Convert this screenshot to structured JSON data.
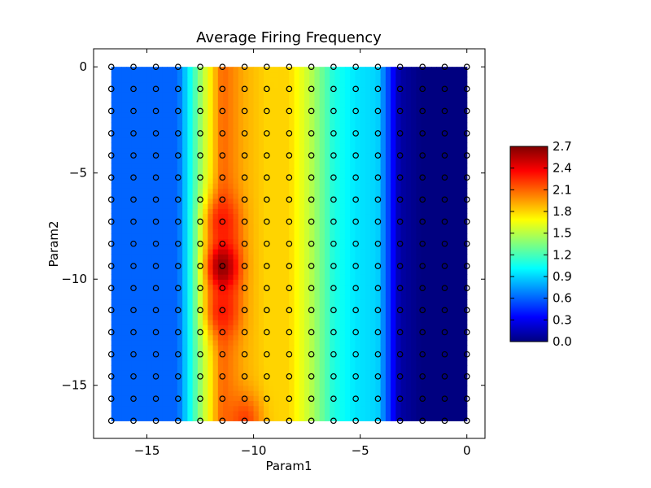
{
  "chart_data": {
    "type": "heatmap",
    "title": "Average Firing Frequency",
    "xlabel": "Param1",
    "ylabel": "Param2",
    "xlim": [
      -17.5,
      0.85
    ],
    "ylim": [
      -17.5,
      0.85
    ],
    "xticks": [
      -15,
      -10,
      -5,
      0
    ],
    "xtick_labels": [
      "−15",
      "−10",
      "−5",
      "0"
    ],
    "yticks": [
      0,
      -5,
      -10,
      -15
    ],
    "ytick_labels": [
      "0",
      "−5",
      "−10",
      "−15"
    ],
    "grid": false,
    "x": [
      -16.67,
      -15.63,
      -14.58,
      -13.54,
      -12.5,
      -11.46,
      -10.42,
      -9.38,
      -8.33,
      -7.29,
      -6.25,
      -5.21,
      -4.17,
      -3.13,
      -2.08,
      -1.04,
      0
    ],
    "y": [
      0,
      -1.04,
      -2.08,
      -3.13,
      -4.17,
      -5.21,
      -6.25,
      -7.29,
      -8.33,
      -9.38,
      -10.42,
      -11.46,
      -12.5,
      -13.54,
      -14.58,
      -15.63,
      -16.67
    ],
    "column_profile": [
      0.6,
      0.6,
      0.6,
      0.6,
      1.4,
      2.1,
      1.9,
      1.8,
      1.8,
      1.5,
      1.1,
      0.95,
      0.9,
      0.1,
      0.0,
      0.0,
      0.0
    ],
    "hotspots": [
      {
        "x": -11.46,
        "y": -9.38,
        "value": 2.65
      },
      {
        "x": -11.46,
        "y": -7.29,
        "value": 2.3
      },
      {
        "x": -11.46,
        "y": -11.46,
        "value": 2.3
      },
      {
        "x": -10.42,
        "y": -16.67,
        "value": 2.2
      }
    ],
    "colorbar": {
      "min": 0.0,
      "max": 2.7,
      "colormap": "jet",
      "tick_values": [
        0.0,
        0.3,
        0.6,
        0.9,
        1.2,
        1.5,
        1.8,
        2.1,
        2.4,
        2.7
      ],
      "tick_labels": [
        "0.0",
        "0.3",
        "0.6",
        "0.9",
        "1.2",
        "1.5",
        "1.8",
        "2.1",
        "2.4",
        "2.7"
      ]
    },
    "markers": {
      "style": "open-circle",
      "edge_color": "#000000"
    }
  }
}
